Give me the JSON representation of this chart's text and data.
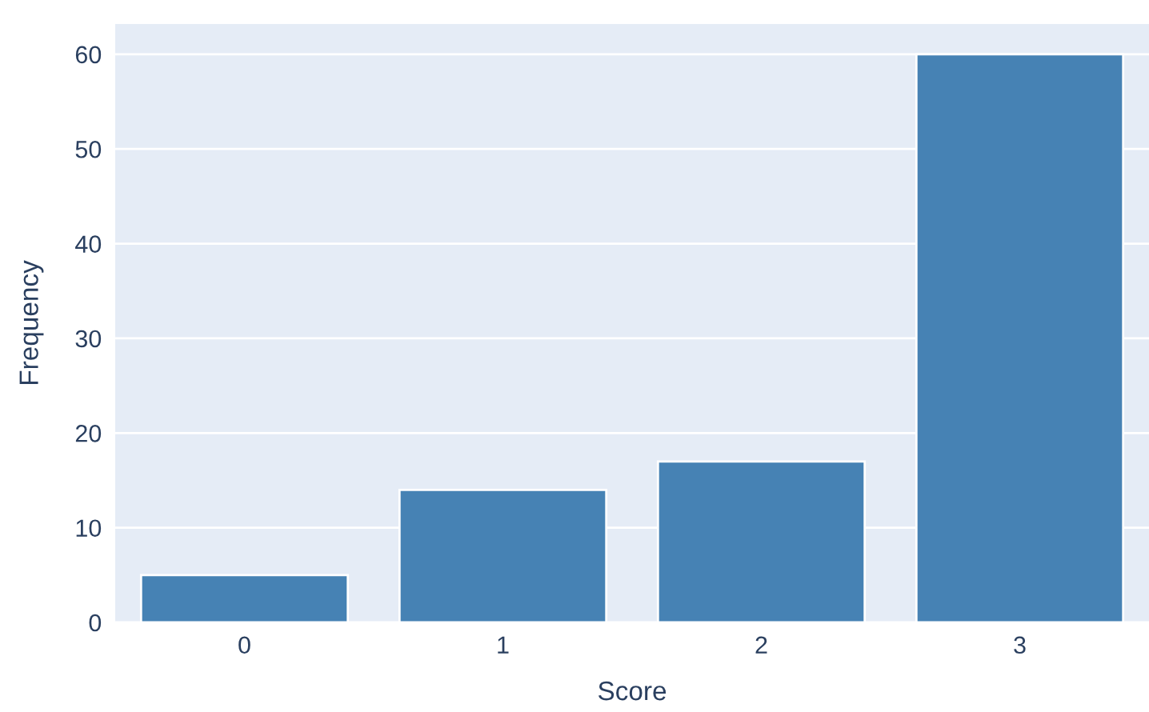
{
  "chart_data": {
    "type": "bar",
    "xlabel": "Score",
    "ylabel": "Frequency",
    "categories": [
      "0",
      "1",
      "2",
      "3"
    ],
    "values": [
      5,
      14,
      17,
      60
    ],
    "color": "#4682b4",
    "ylim": [
      0,
      63.2
    ],
    "yticks": [
      0,
      10,
      20,
      30,
      40,
      50,
      60
    ],
    "grid": "y"
  }
}
